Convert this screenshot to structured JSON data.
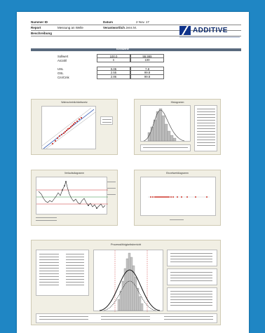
{
  "header": {
    "row1_label": "Nummer ID",
    "row2_label": "Report",
    "row2_value": "Messung an Welle",
    "row3_label": "Beschreibung",
    "mid_row1_label": "Datum",
    "mid_row2_label": "Verantwortlich",
    "mid_row2_value": "Jens M.",
    "right_row1_value": "2 Nov. 17"
  },
  "logo": {
    "brand": "ADDITIVE",
    "colors": {
      "mark": "#10338a",
      "text": "#0d2a6b"
    }
  },
  "section_bar": {
    "label": "Kennwerte"
  },
  "values_table": {
    "rows": [
      {
        "key": "Sollwert",
        "a": "100.0",
        "b": "99.999"
      },
      {
        "key": "Anzahl",
        "a": "n",
        "b": "100"
      }
    ],
    "rows2": [
      {
        "key": "USL",
        "a": "0.05",
        "b": "7.8"
      },
      {
        "key": "OSL",
        "a": "2.55",
        "b": "99.8"
      },
      {
        "key": "Cm/Cmk",
        "a": "2.86",
        "b": "99.8"
      }
    ]
  },
  "panels": {
    "probability": {
      "title": "Wahrscheinlichkeitsnetz"
    },
    "histogram": {
      "title": "Histogramm"
    },
    "run_chart": {
      "title": "Verlaufsdiagramm"
    },
    "dot_plot": {
      "title": "Einzelwertdiagramm"
    },
    "capability": {
      "title": "Prozessfähigkeitsbericht"
    }
  }
}
